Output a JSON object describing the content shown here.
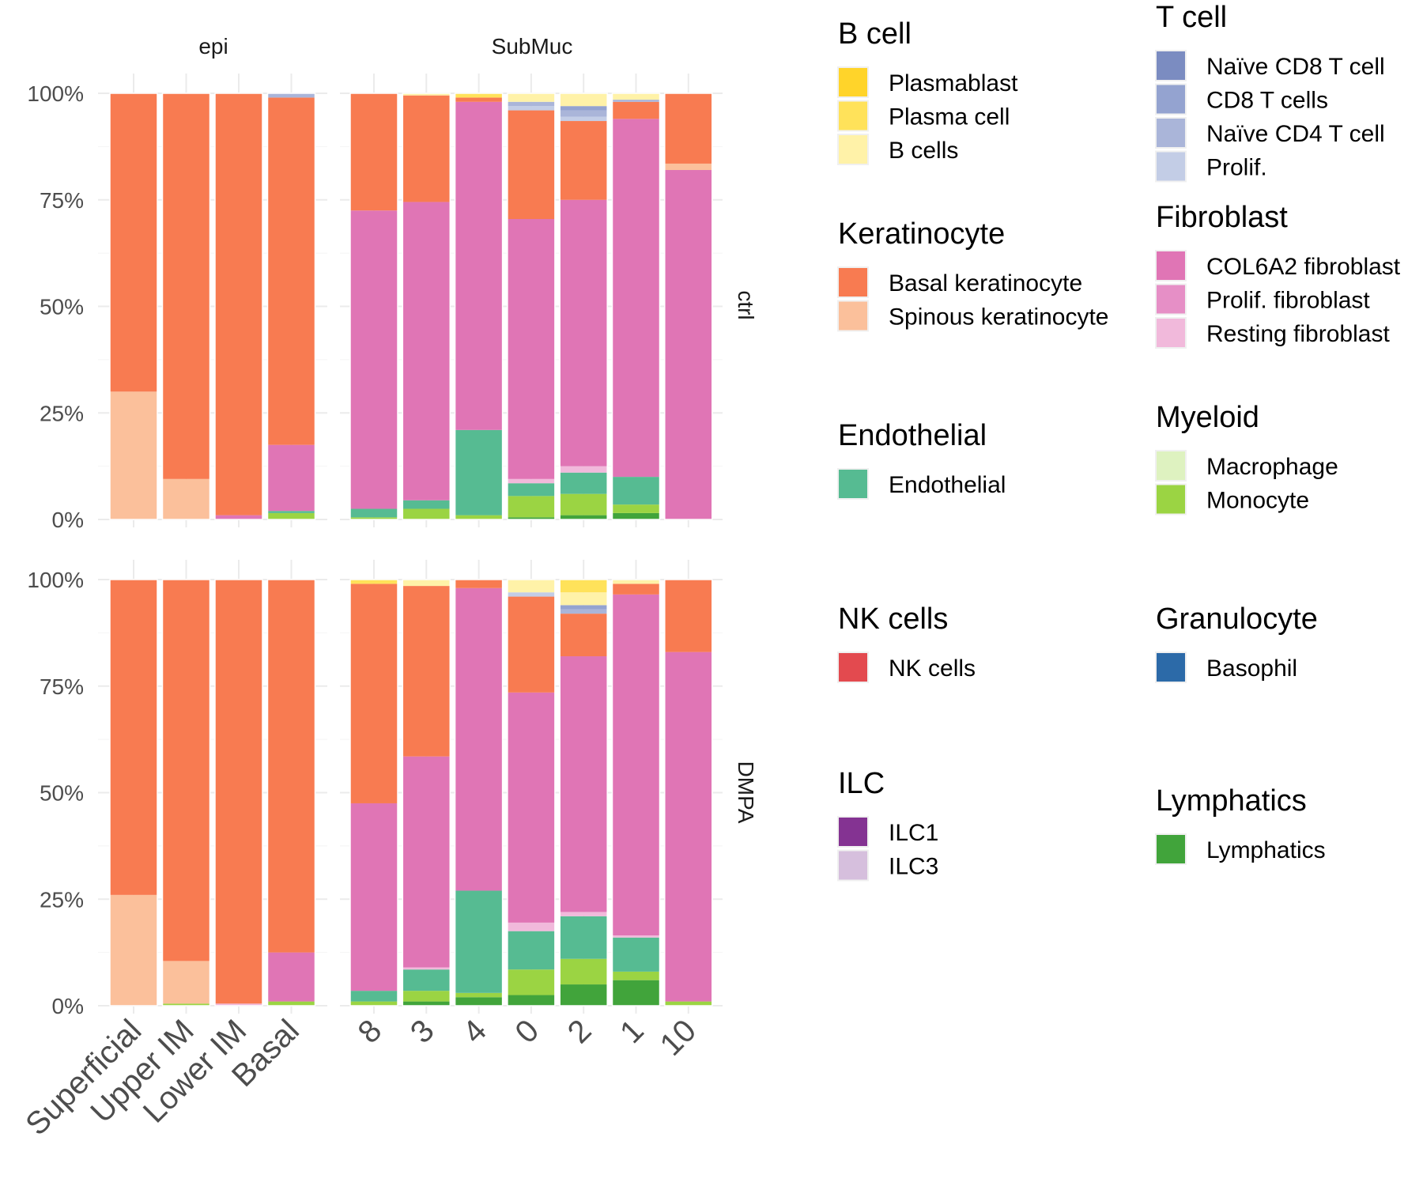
{
  "chart_data": {
    "type": "bar",
    "stacked": true,
    "normalized": true,
    "grid": true,
    "legend_placement": "right",
    "column_facets": [
      "epi",
      "SubMuc"
    ],
    "row_facets": [
      "ctrl",
      "DMPA"
    ],
    "y_ticks": [
      "0%",
      "25%",
      "50%",
      "75%",
      "100%"
    ],
    "ylim": [
      0,
      100
    ],
    "x_categories": {
      "epi": [
        "Superficial",
        "Upper IM",
        "Lower IM",
        "Basal"
      ],
      "SubMuc": [
        "8",
        "3",
        "4",
        "0",
        "2",
        "1",
        "10"
      ]
    },
    "cell_types": [
      {
        "name": "Lymphatics",
        "color": "#41a43b"
      },
      {
        "name": "Monocyte",
        "color": "#9bd443"
      },
      {
        "name": "Macrophage",
        "color": "#def2c0"
      },
      {
        "name": "Endothelial",
        "color": "#56bb92"
      },
      {
        "name": "Resting fibroblast",
        "color": "#f1b9db"
      },
      {
        "name": "Prolif. fibroblast",
        "color": "#e68fc6"
      },
      {
        "name": "COL6A2 fibroblast",
        "color": "#e075b5"
      },
      {
        "name": "Spinous keratinocyte",
        "color": "#fbc09b"
      },
      {
        "name": "Basal keratinocyte",
        "color": "#f87b51"
      },
      {
        "name": "Prolif.",
        "color": "#c3cde6"
      },
      {
        "name": "Naïve CD4 T cell",
        "color": "#aab5d9"
      },
      {
        "name": "CD8 T cells",
        "color": "#94a3d0"
      },
      {
        "name": "Naïve CD8 T cell",
        "color": "#7b8cc1"
      },
      {
        "name": "B cells",
        "color": "#fff2a8"
      },
      {
        "name": "Plasma cell",
        "color": "#ffe25a"
      },
      {
        "name": "Plasmablast",
        "color": "#ffd42a"
      }
    ],
    "values": {
      "ctrl": {
        "epi": {
          "Superficial": {
            "Spinous keratinocyte": 30,
            "Basal keratinocyte": 70
          },
          "Upper IM": {
            "Spinous keratinocyte": 9.5,
            "Basal keratinocyte": 90.5
          },
          "Lower IM": {
            "COL6A2 fibroblast": 1,
            "Basal keratinocyte": 99
          },
          "Basal": {
            "Monocyte": 1.5,
            "Endothelial": 0.5,
            "COL6A2 fibroblast": 15.5,
            "Basal keratinocyte": 81.5,
            "Naïve CD4 T cell": 1
          }
        },
        "SubMuc": {
          "8": {
            "Monocyte": 0.5,
            "Endothelial": 2,
            "COL6A2 fibroblast": 70,
            "Basal keratinocyte": 27.5
          },
          "3": {
            "Monocyte": 2.5,
            "Endothelial": 2,
            "COL6A2 fibroblast": 70,
            "Basal keratinocyte": 25,
            "B cells": 0.5
          },
          "4": {
            "Monocyte": 1,
            "Endothelial": 20,
            "COL6A2 fibroblast": 77,
            "Basal keratinocyte": 1,
            "Plasma cell": 1
          },
          "0": {
            "Lymphatics": 0.5,
            "Monocyte": 5,
            "Endothelial": 3,
            "Resting fibroblast": 1,
            "COL6A2 fibroblast": 61,
            "Basal keratinocyte": 25.5,
            "Prolif.": 1,
            "Naïve CD4 T cell": 1,
            "B cells": 2
          },
          "2": {
            "Lymphatics": 1,
            "Monocyte": 5,
            "Endothelial": 5,
            "Resting fibroblast": 1.5,
            "COL6A2 fibroblast": 62.5,
            "Basal keratinocyte": 18.5,
            "Prolif.": 1,
            "Naïve CD4 T cell": 1.5,
            "CD8 T cells": 1,
            "B cells": 3
          },
          "1": {
            "Lymphatics": 1.5,
            "Monocyte": 2,
            "Endothelial": 6.5,
            "COL6A2 fibroblast": 84,
            "Basal keratinocyte": 4,
            "Naïve CD4 T cell": 0.5,
            "B cells": 1.5
          },
          "10": {
            "COL6A2 fibroblast": 82,
            "Spinous keratinocyte": 1.5,
            "Basal keratinocyte": 16.5
          }
        }
      },
      "DMPA": {
        "epi": {
          "Superficial": {
            "Spinous keratinocyte": 26,
            "Basal keratinocyte": 74
          },
          "Upper IM": {
            "Monocyte": 0.5,
            "Spinous keratinocyte": 10,
            "Basal keratinocyte": 89.5
          },
          "Lower IM": {
            "Resting fibroblast": 0.5,
            "Basal keratinocyte": 99.5
          },
          "Basal": {
            "Monocyte": 1,
            "COL6A2 fibroblast": 11.5,
            "Basal keratinocyte": 87.5
          }
        },
        "SubMuc": {
          "8": {
            "Monocyte": 1,
            "Endothelial": 2.5,
            "COL6A2 fibroblast": 44,
            "Basal keratinocyte": 51.5,
            "Plasma cell": 1
          },
          "3": {
            "Lymphatics": 1,
            "Monocyte": 2.5,
            "Endothelial": 5,
            "Resting fibroblast": 0.5,
            "COL6A2 fibroblast": 49.5,
            "Basal keratinocyte": 40,
            "B cells": 1.5
          },
          "4": {
            "Lymphatics": 2,
            "Monocyte": 1,
            "Endothelial": 24,
            "COL6A2 fibroblast": 71,
            "Basal keratinocyte": 2
          },
          "0": {
            "Lymphatics": 2.5,
            "Monocyte": 6,
            "Endothelial": 9,
            "Resting fibroblast": 2,
            "COL6A2 fibroblast": 54,
            "Basal keratinocyte": 22.5,
            "Prolif.": 1,
            "B cells": 3
          },
          "2": {
            "Lymphatics": 5,
            "Monocyte": 6,
            "Endothelial": 10,
            "Resting fibroblast": 1,
            "COL6A2 fibroblast": 60,
            "Basal keratinocyte": 10,
            "Naïve CD4 T cell": 1,
            "CD8 T cells": 1,
            "B cells": 3,
            "Plasma cell": 3
          },
          "1": {
            "Lymphatics": 6,
            "Monocyte": 2,
            "Endothelial": 8,
            "Resting fibroblast": 0.5,
            "COL6A2 fibroblast": 80,
            "Basal keratinocyte": 2.5,
            "B cells": 1
          },
          "10": {
            "Monocyte": 1,
            "COL6A2 fibroblast": 82,
            "Basal keratinocyte": 17
          }
        }
      }
    },
    "legend": [
      {
        "title": "B cell",
        "items": [
          {
            "label": "Plasmablast",
            "color": "#ffd42a"
          },
          {
            "label": "Plasma cell",
            "color": "#ffe25a"
          },
          {
            "label": "B cells",
            "color": "#fff2a8"
          }
        ]
      },
      {
        "title": "Keratinocyte",
        "items": [
          {
            "label": "Basal keratinocyte",
            "color": "#f87b51"
          },
          {
            "label": "Spinous keratinocyte",
            "color": "#fbc09b"
          }
        ]
      },
      {
        "title": "Endothelial",
        "items": [
          {
            "label": "Endothelial",
            "color": "#56bb92"
          }
        ]
      },
      {
        "title": "NK cells",
        "items": [
          {
            "label": "NK cells",
            "color": "#e34a4f"
          }
        ]
      },
      {
        "title": "ILC",
        "items": [
          {
            "label": "ILC1",
            "color": "#843392"
          },
          {
            "label": "ILC3",
            "color": "#d6bfdd"
          }
        ]
      },
      {
        "title": "T cell",
        "items": [
          {
            "label": "Naïve CD8 T cell",
            "color": "#7b8cc1"
          },
          {
            "label": "CD8 T cells",
            "color": "#94a3d0"
          },
          {
            "label": "Naïve CD4 T cell",
            "color": "#aab5d9"
          },
          {
            "label": "Prolif.",
            "color": "#c3cde6"
          }
        ]
      },
      {
        "title": "Fibroblast",
        "items": [
          {
            "label": "COL6A2 fibroblast",
            "color": "#e075b5"
          },
          {
            "label": "Prolif. fibroblast",
            "color": "#e68fc6"
          },
          {
            "label": "Resting fibroblast",
            "color": "#f1b9db"
          }
        ]
      },
      {
        "title": "Myeloid",
        "items": [
          {
            "label": "Macrophage",
            "color": "#def2c0"
          },
          {
            "label": "Monocyte",
            "color": "#9bd443"
          }
        ]
      },
      {
        "title": "Granulocyte",
        "items": [
          {
            "label": "Basophil",
            "color": "#2c6aa8"
          }
        ]
      },
      {
        "title": "Lymphatics",
        "items": [
          {
            "label": "Lymphatics",
            "color": "#41a43b"
          }
        ]
      }
    ]
  }
}
